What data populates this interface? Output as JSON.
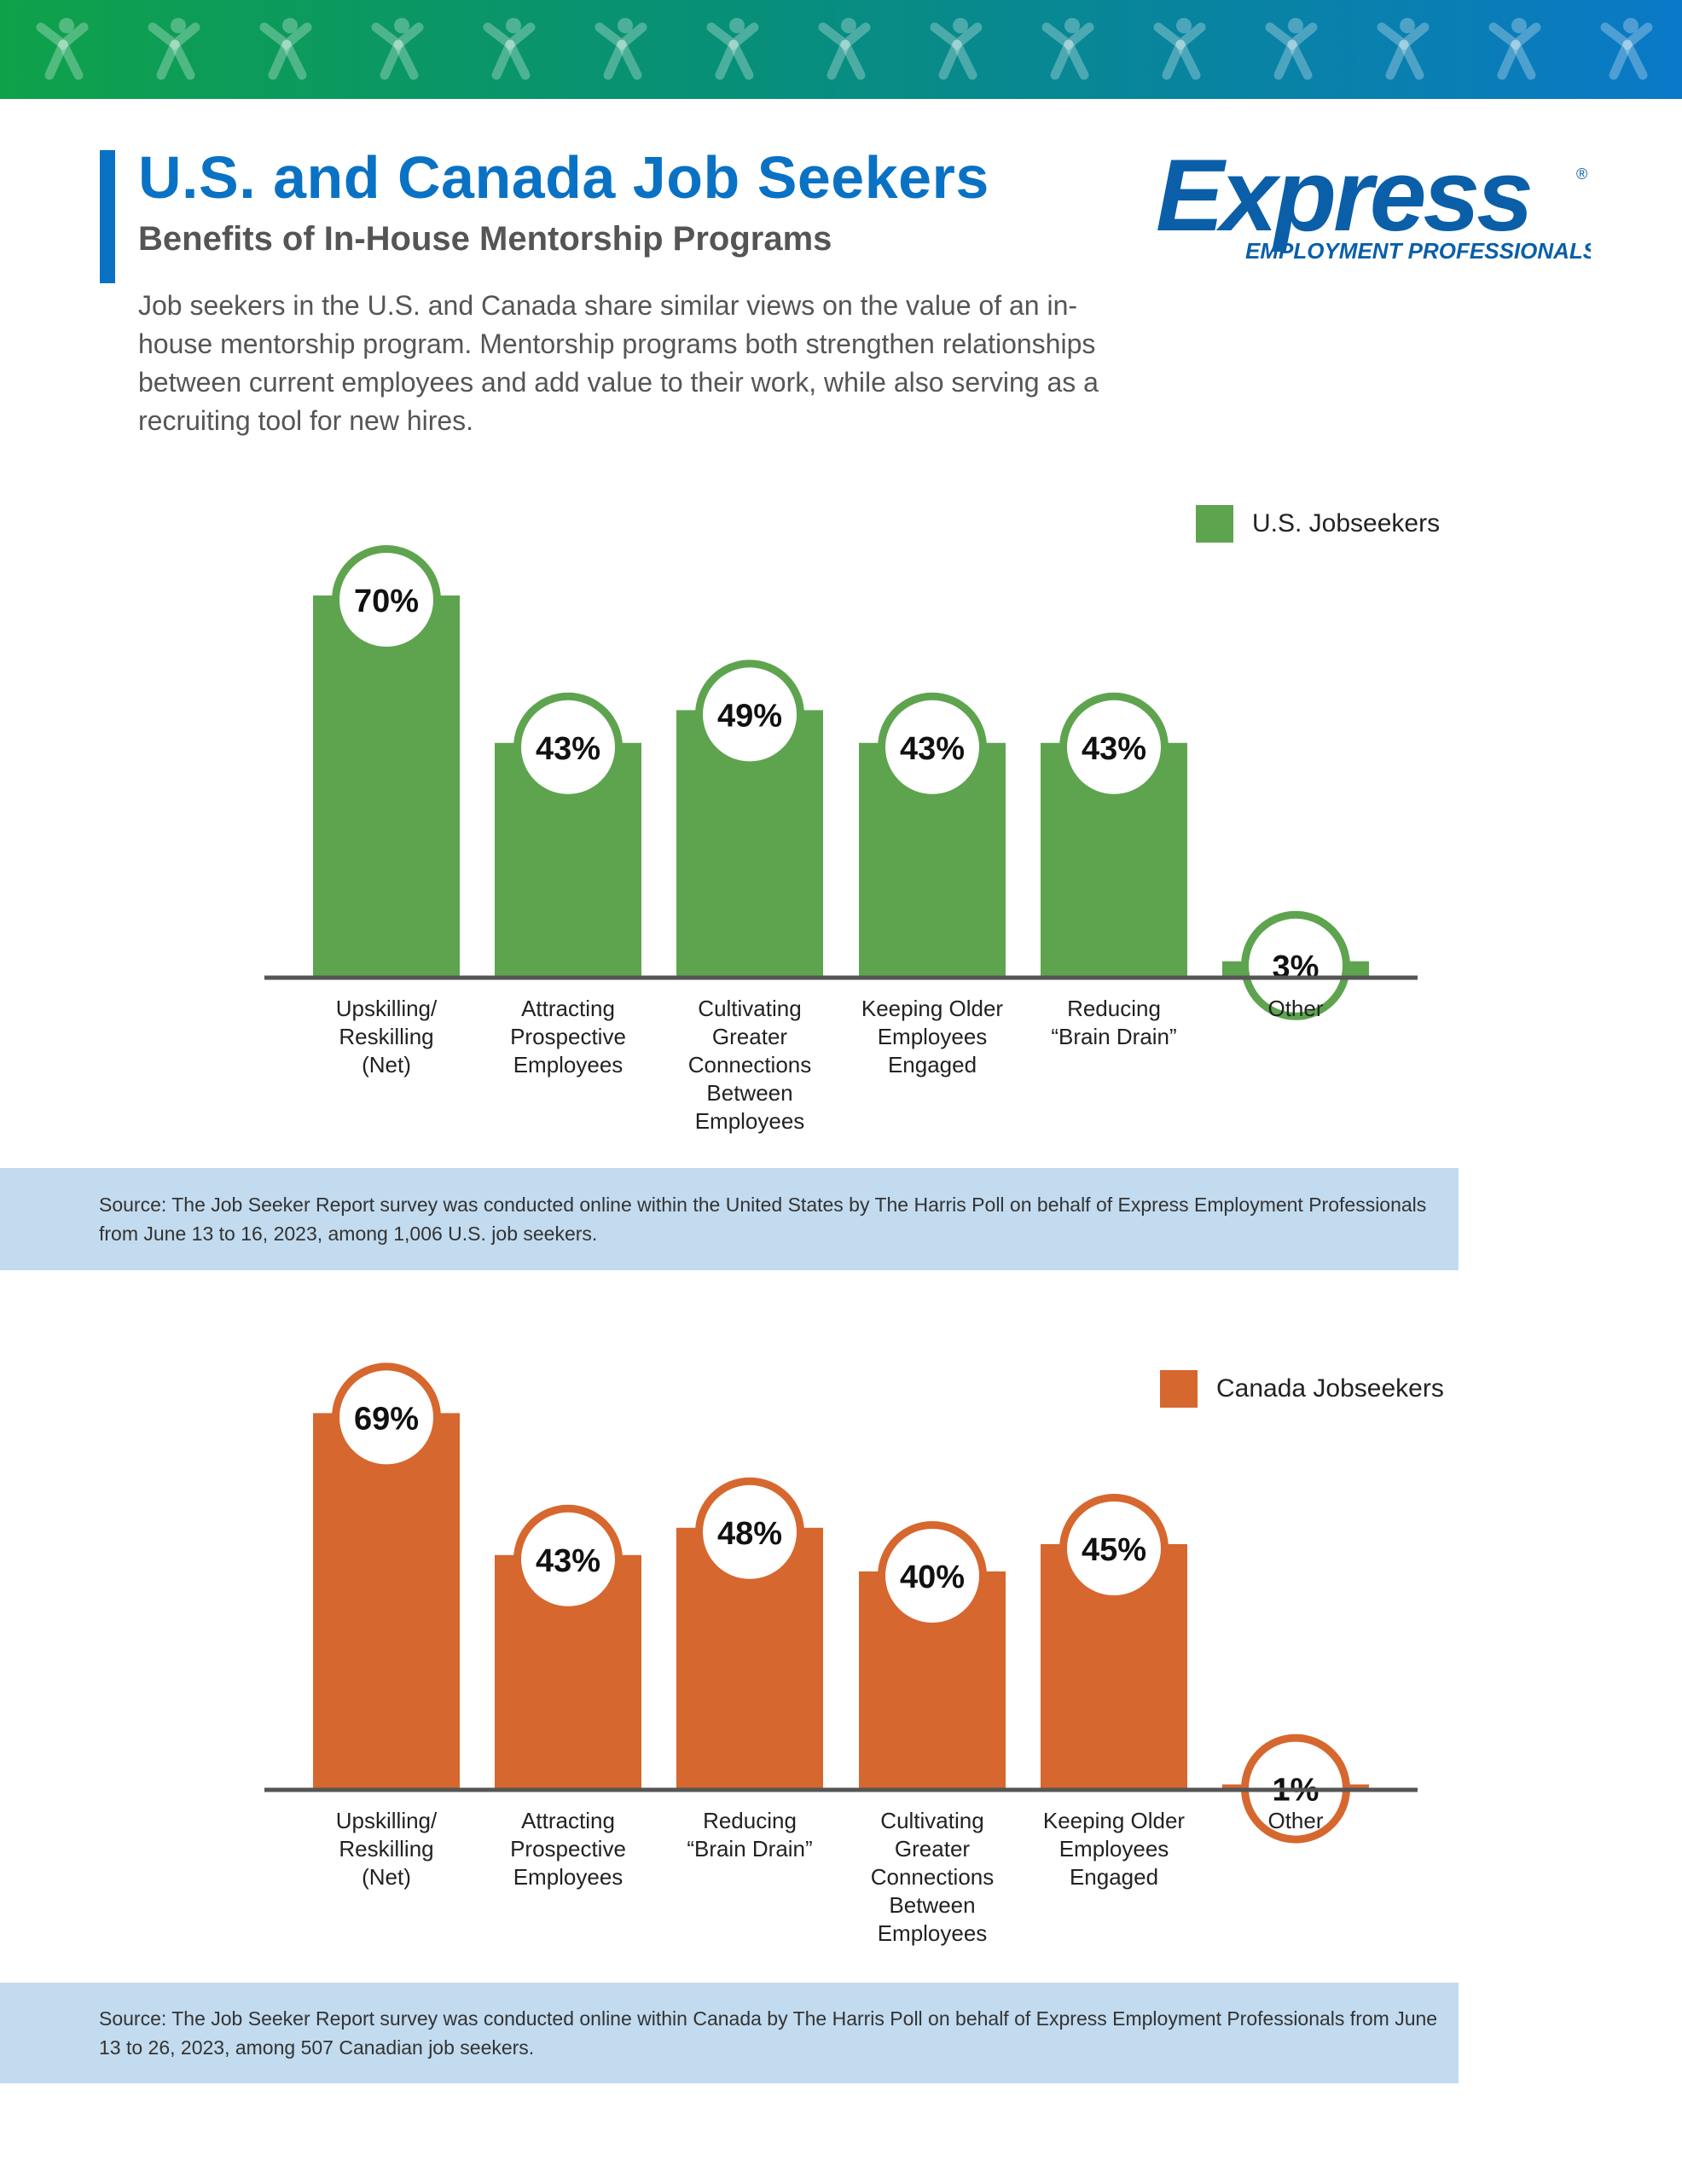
{
  "header": {
    "title": "U.S. and Canada Job Seekers",
    "subtitle": "Benefits of In-House Mentorship Programs",
    "intro": "Job seekers in the U.S. and Canada share similar views on the value of an in-house mentorship program. Mentorship programs both strengthen relationships between current employees and add value to their work, while also serving as a recruiting tool for new hires."
  },
  "logo": {
    "wordmark": "Express",
    "tagline": "EMPLOYMENT PROFESSIONALS",
    "registered": "®",
    "banner_icon": "running-person-icon"
  },
  "colors": {
    "us": "#5ea44f",
    "canada": "#d6672e",
    "title": "#0a72c4",
    "source_bg": "#c2dbef"
  },
  "chart_data": [
    {
      "type": "bar",
      "series": [
        {
          "name": "U.S. Jobseekers",
          "values": [
            70,
            43,
            49,
            43,
            43,
            3
          ]
        }
      ],
      "categories": [
        [
          "Upskilling/",
          "Reskilling",
          "(Net)"
        ],
        [
          "Attracting",
          "Prospective",
          "Employees"
        ],
        [
          "Cultivating",
          "Greater",
          "Connections",
          "Between",
          "Employees"
        ],
        [
          "Keeping Older",
          "Employees",
          "Engaged"
        ],
        [
          "Reducing",
          "“Brain Drain”"
        ],
        [
          "Other"
        ]
      ],
      "value_labels": [
        "70%",
        "43%",
        "49%",
        "43%",
        "43%",
        "3%"
      ],
      "unit": "%",
      "ylim": [
        0,
        100
      ],
      "grid": false,
      "legend": "top-right",
      "source": "Source: The Job Seeker Report survey was conducted online within the United States by The Harris Poll on behalf of Express Employment Professionals from June 13 to 16, 2023, among 1,006 U.S. job seekers."
    },
    {
      "type": "bar",
      "series": [
        {
          "name": "Canada Jobseekers",
          "values": [
            69,
            43,
            48,
            40,
            45,
            1
          ]
        }
      ],
      "categories": [
        [
          "Upskilling/",
          "Reskilling",
          "(Net)"
        ],
        [
          "Attracting",
          "Prospective",
          "Employees"
        ],
        [
          "Reducing",
          "“Brain Drain”"
        ],
        [
          "Cultivating",
          "Greater",
          "Connections",
          "Between",
          "Employees"
        ],
        [
          "Keeping Older",
          "Employees",
          "Engaged"
        ],
        [
          "Other"
        ]
      ],
      "value_labels": [
        "69%",
        "43%",
        "48%",
        "40%",
        "45%",
        "1%"
      ],
      "unit": "%",
      "ylim": [
        0,
        100
      ],
      "grid": false,
      "legend": "top-right",
      "source": "Source: The Job Seeker Report survey was conducted online within Canada by The Harris Poll on behalf of Express Employment Professionals from June 13 to 26, 2023, among 507 Canadian job seekers."
    }
  ]
}
